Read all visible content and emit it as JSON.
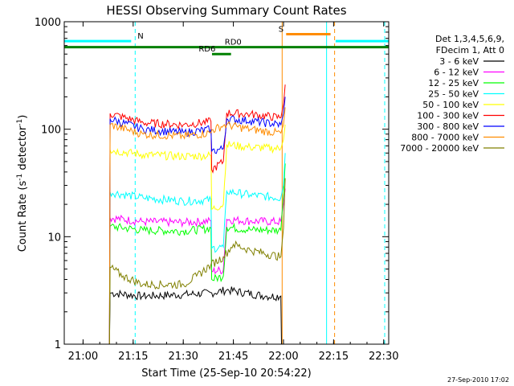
{
  "chart_data": {
    "type": "line",
    "title": "HESSI Observing Summary Count Rates",
    "xlabel": "Start Time (25-Sep-10 20:54:22)",
    "ylabel_main": "Count Rate (s",
    "ylabel_sup1": "-1",
    "ylabel_mid": " detector",
    "ylabel_sup2": "-1",
    "ylabel_end": ")",
    "footer": "27-Sep-2010 17:02",
    "xlim_min": [
      54.37,
      151.5
    ],
    "ylim": [
      1,
      1000
    ],
    "y_scale": "log",
    "x_ticks": [
      {
        "value": 60,
        "label": "21:00"
      },
      {
        "value": 75,
        "label": "21:15"
      },
      {
        "value": 90,
        "label": "21:30"
      },
      {
        "value": 105,
        "label": "21:45"
      },
      {
        "value": 120,
        "label": "22:00"
      },
      {
        "value": 135,
        "label": "22:15"
      },
      {
        "value": 150,
        "label": "22:30"
      }
    ],
    "y_ticks": [
      {
        "value": 1,
        "label": "1"
      },
      {
        "value": 10,
        "label": "10"
      },
      {
        "value": 100,
        "label": "100"
      },
      {
        "value": 1000,
        "label": "1000"
      }
    ],
    "legend_header": [
      "Det 1,3,4,5,6,9,",
      "FDecim 1, Att 0"
    ],
    "series": [
      {
        "name": "3 - 6 keV",
        "color": "#000000",
        "points": [
          [
            67.9,
            1
          ],
          [
            68.1,
            3
          ],
          [
            78,
            2.8
          ],
          [
            90,
            2.9
          ],
          [
            98.5,
            3.0
          ],
          [
            103,
            3.2
          ],
          [
            115,
            2.8
          ],
          [
            119.2,
            2.8
          ],
          [
            119.4,
            1
          ]
        ]
      },
      {
        "name": "6 - 12 keV",
        "color": "#ff00ff",
        "points": [
          [
            67.9,
            1
          ],
          [
            68.1,
            15
          ],
          [
            78,
            13.8
          ],
          [
            90,
            13.6
          ],
          [
            98.3,
            14.0
          ],
          [
            98.5,
            4.8
          ],
          [
            102,
            4.9
          ],
          [
            103,
            14.5
          ],
          [
            110,
            14.0
          ],
          [
            119.2,
            13.8
          ],
          [
            120,
            20
          ],
          [
            120.5,
            28
          ]
        ]
      },
      {
        "name": "12 - 25 keV",
        "color": "#00ff00",
        "points": [
          [
            67.9,
            1
          ],
          [
            68.1,
            12.5
          ],
          [
            78,
            11.5
          ],
          [
            90,
            11.3
          ],
          [
            98.3,
            12.0
          ],
          [
            98.5,
            4.0
          ],
          [
            102,
            4.3
          ],
          [
            103,
            12.3
          ],
          [
            110,
            11.6
          ],
          [
            119.2,
            11.5
          ],
          [
            120,
            25
          ],
          [
            120.5,
            48
          ]
        ]
      },
      {
        "name": "25 - 50 keV",
        "color": "#00ffff",
        "points": [
          [
            67.9,
            1
          ],
          [
            68.1,
            26
          ],
          [
            78,
            23
          ],
          [
            90,
            21.5
          ],
          [
            98.3,
            22.0
          ],
          [
            98.5,
            7.8
          ],
          [
            102,
            8.0
          ],
          [
            103,
            26.5
          ],
          [
            110,
            24.5
          ],
          [
            119.2,
            23.0
          ],
          [
            120,
            30
          ],
          [
            120.5,
            60
          ]
        ]
      },
      {
        "name": "50 - 100 keV",
        "color": "#ffff00",
        "points": [
          [
            67.9,
            1
          ],
          [
            68.1,
            64
          ],
          [
            78,
            58
          ],
          [
            90,
            56
          ],
          [
            98.3,
            57
          ],
          [
            98.5,
            18
          ],
          [
            102,
            20
          ],
          [
            103,
            72
          ],
          [
            110,
            68
          ],
          [
            119.2,
            66
          ],
          [
            120,
            80
          ],
          [
            120.5,
            110
          ]
        ]
      },
      {
        "name": "100 - 300 keV",
        "color": "#ff0000",
        "points": [
          [
            67.9,
            1
          ],
          [
            68.1,
            140
          ],
          [
            78,
            115
          ],
          [
            90,
            110
          ],
          [
            98.3,
            118
          ],
          [
            98.5,
            42
          ],
          [
            102,
            50
          ],
          [
            103,
            142
          ],
          [
            110,
            138
          ],
          [
            119.2,
            128
          ],
          [
            120,
            170
          ],
          [
            120.5,
            260
          ]
        ]
      },
      {
        "name": "300 - 800 keV",
        "color": "#0000ff",
        "points": [
          [
            67.9,
            1
          ],
          [
            68.1,
            125
          ],
          [
            78,
            100
          ],
          [
            90,
            93
          ],
          [
            98.3,
            100
          ],
          [
            98.5,
            62
          ],
          [
            102,
            66
          ],
          [
            103,
            125
          ],
          [
            110,
            120
          ],
          [
            119.2,
            110
          ],
          [
            120,
            140
          ],
          [
            120.5,
            200
          ]
        ]
      },
      {
        "name": "800 - 7000 keV",
        "color": "#ff8c00",
        "points": [
          [
            67.9,
            1
          ],
          [
            68.1,
            110
          ],
          [
            78,
            90
          ],
          [
            90,
            86
          ],
          [
            98.3,
            93
          ],
          [
            98.5,
            98
          ],
          [
            102,
            108
          ],
          [
            103,
            110
          ],
          [
            110,
            100
          ],
          [
            119.2,
            92
          ],
          [
            120,
            110
          ],
          [
            120.5,
            160
          ]
        ]
      },
      {
        "name": "7000 - 20000 keV",
        "color": "#808000",
        "points": [
          [
            67.9,
            1
          ],
          [
            68.1,
            5.2
          ],
          [
            72,
            4.3
          ],
          [
            78,
            3.6
          ],
          [
            90,
            3.6
          ],
          [
            94,
            4.3
          ],
          [
            98.3,
            5.5
          ],
          [
            102,
            6.5
          ],
          [
            105,
            8.5
          ],
          [
            110,
            7.5
          ],
          [
            119.2,
            6.5
          ],
          [
            120,
            12
          ],
          [
            120.5,
            35
          ]
        ]
      }
    ],
    "observing_flags": [
      {
        "label": "N",
        "color": "#00ffff",
        "y_value": 660,
        "segments": [
          [
            54.37,
            74.4
          ]
        ],
        "label_x": 76.3
      },
      {
        "label": "N",
        "color": "#00ffff",
        "y_value": 660,
        "segments": [
          [
            135.6,
            151.5
          ]
        ],
        "label_x": null
      },
      {
        "label": "S",
        "color": "#ff8c00",
        "y_value": 765,
        "segments": [
          [
            120.8,
            134.1
          ]
        ],
        "label_x": 118.5
      },
      {
        "label": "RD0",
        "color": "#008000",
        "y_value": 580,
        "segments": [
          [
            54.37,
            151.5
          ]
        ],
        "label_x": 102.4
      },
      {
        "label": "RD6",
        "color": "#008000",
        "y_value": 500,
        "segments": [
          [
            98.6,
            104.3
          ]
        ],
        "label_x": 94.6
      }
    ],
    "vertical_markers": [
      {
        "x": 54.37,
        "color": "#00ffff",
        "style": "solid"
      },
      {
        "x": 75.6,
        "color": "#00ffff",
        "style": "dashed"
      },
      {
        "x": 119.6,
        "color": "#ff8c00",
        "style": "solid"
      },
      {
        "x": 132.9,
        "color": "#00ffff",
        "style": "solid"
      },
      {
        "x": 135.3,
        "color": "#ff8c00",
        "style": "dashed"
      },
      {
        "x": 150.3,
        "color": "#00ffff",
        "style": "dashed"
      }
    ]
  }
}
